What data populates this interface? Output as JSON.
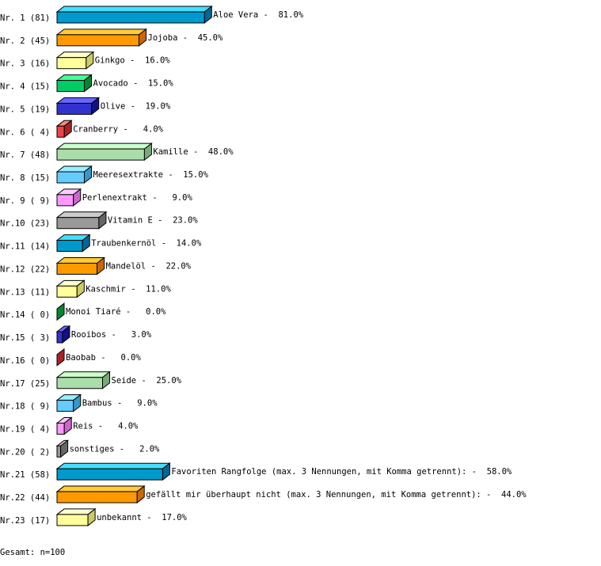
{
  "chart_data": {
    "type": "bar",
    "orientation": "horizontal",
    "style": "3d",
    "unit": "%",
    "rows": [
      {
        "label": "Nr. 1 (81)",
        "name": "Aloe Vera",
        "value": 81.0
      },
      {
        "label": "Nr. 2 (45)",
        "name": "Jojoba",
        "value": 45.0
      },
      {
        "label": "Nr. 3 (16)",
        "name": "Ginkgo",
        "value": 16.0
      },
      {
        "label": "Nr. 4 (15)",
        "name": "Avocado",
        "value": 15.0
      },
      {
        "label": "Nr. 5 (19)",
        "name": "Olive",
        "value": 19.0
      },
      {
        "label": "Nr. 6 ( 4)",
        "name": "Cranberry",
        "value": 4.0
      },
      {
        "label": "Nr. 7 (48)",
        "name": "Kamille",
        "value": 48.0
      },
      {
        "label": "Nr. 8 (15)",
        "name": "Meeresextrakte",
        "value": 15.0
      },
      {
        "label": "Nr. 9 ( 9)",
        "name": "Perlenextrakt",
        "value": 9.0
      },
      {
        "label": "Nr.10 (23)",
        "name": "Vitamin E",
        "value": 23.0
      },
      {
        "label": "Nr.11 (14)",
        "name": "Traubenkernöl",
        "value": 14.0
      },
      {
        "label": "Nr.12 (22)",
        "name": "Mandelöl",
        "value": 22.0
      },
      {
        "label": "Nr.13 (11)",
        "name": "Kaschmir",
        "value": 11.0
      },
      {
        "label": "Nr.14 ( 0)",
        "name": "Monoi Tiaré",
        "value": 0.0
      },
      {
        "label": "Nr.15 ( 3)",
        "name": "Rooibos",
        "value": 3.0
      },
      {
        "label": "Nr.16 ( 0)",
        "name": "Baobab",
        "value": 0.0
      },
      {
        "label": "Nr.17 (25)",
        "name": "Seide",
        "value": 25.0
      },
      {
        "label": "Nr.18 ( 9)",
        "name": "Bambus",
        "value": 9.0
      },
      {
        "label": "Nr.19 ( 4)",
        "name": "Reis",
        "value": 4.0
      },
      {
        "label": "Nr.20 ( 2)",
        "name": "sonstiges",
        "value": 2.0
      },
      {
        "label": "Nr.21 (58)",
        "name": "Favoriten Rangfolge (max. 3 Nennungen, mit Komma getrennt):",
        "value": 58.0
      },
      {
        "label": "Nr.22 (44)",
        "name": "gefällt mir überhaupt nicht (max. 3 Nennungen, mit Komma getrennt):",
        "value": 44.0
      },
      {
        "label": "Nr.23 (17)",
        "name": "unbekannt",
        "value": 17.0
      }
    ],
    "colors": [
      {
        "front": "#0099cc",
        "top": "#44ddff",
        "side": "#006699"
      },
      {
        "front": "#ff9900",
        "top": "#ffcc33",
        "side": "#cc6600"
      },
      {
        "front": "#ffff99",
        "top": "#ffffcc",
        "side": "#cccc66"
      },
      {
        "front": "#00cc66",
        "top": "#44ff99",
        "side": "#008833"
      },
      {
        "front": "#3333cc",
        "top": "#6666ff",
        "side": "#111188"
      },
      {
        "front": "#ee4444",
        "top": "#ff8888",
        "side": "#aa2222"
      },
      {
        "front": "#aaddaa",
        "top": "#ccffcc",
        "side": "#77aa77"
      },
      {
        "front": "#66ccff",
        "top": "#99eeff",
        "side": "#3399cc"
      },
      {
        "front": "#ff99ff",
        "top": "#ffccff",
        "side": "#cc66cc"
      },
      {
        "front": "#999999",
        "top": "#cccccc",
        "side": "#666666"
      }
    ]
  },
  "footer": {
    "total": "Gesamt: n=100"
  }
}
